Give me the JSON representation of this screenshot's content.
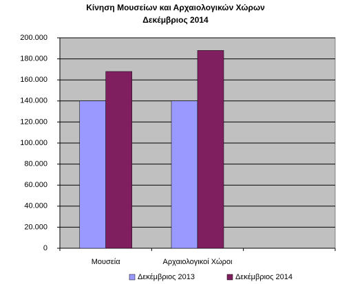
{
  "chart_data": {
    "type": "bar",
    "title": [
      "Κίνηση Μουσείων και Αρχαιολογικών Χώρων",
      "Δεκέμβριος 2014"
    ],
    "categories": [
      "Μουσεία",
      "Αρχαιολογικοί Χώροι",
      null
    ],
    "series": [
      {
        "name": "Δεκέμβριος 2013",
        "color": "#9999ff",
        "values": [
          140000,
          140000,
          null
        ]
      },
      {
        "name": "Δεκέμβριος 2014",
        "color": "#7f1f5f",
        "values": [
          168000,
          188000,
          null
        ]
      }
    ],
    "ylim": [
      0,
      200000
    ],
    "yticks": [
      0,
      {
        "value": 20000,
        "label": "20.000"
      },
      {
        "value": 40000,
        "label": "40.000"
      },
      {
        "value": 60000,
        "label": "60.000"
      },
      {
        "value": 80000,
        "label": "80.000"
      },
      {
        "value": 100000,
        "label": "100.000"
      },
      {
        "value": 120000,
        "label": "120.000"
      },
      {
        "value": 140000,
        "label": "140.000"
      },
      {
        "value": 160000,
        "label": "160.000"
      },
      {
        "value": 180000,
        "label": "180.000"
      },
      {
        "value": 200000,
        "label": "200.000"
      }
    ],
    "grid": true,
    "plot_background": "#c0c0c0",
    "legend": "bottom"
  }
}
